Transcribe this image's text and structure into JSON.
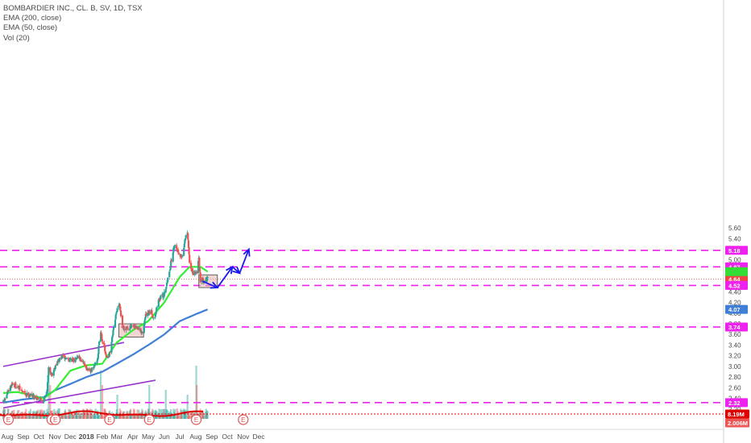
{
  "header": {
    "title": "BOMBARDIER INC., CL. B, SV, 1D, TSX",
    "indicators": [
      "EMA (200, close)",
      "EMA (50, close)",
      "Vol (20)"
    ]
  },
  "colors": {
    "up": "#26a69a",
    "down": "#ef5350",
    "ema50": "#33ee33",
    "ema200": "#3f7fd6",
    "support_resistance": "#ee22ee",
    "channel": "#9933cc",
    "arrow": "#1a1aee",
    "box_fill": "#e6b3ad",
    "vol_ma": "#dd0000",
    "last_price": "#ee4444",
    "ema200_label": "#3f7fd6",
    "ema50_label": "#33dd33"
  },
  "chart_data": {
    "type": "candlestick",
    "title": "BOMBARDIER INC., CL. B, SV, 1D, TSX",
    "xlabel": "",
    "ylabel": "",
    "ylim": [
      1.95,
      5.65
    ],
    "y_ticks": [
      2.0,
      2.2,
      2.4,
      2.6,
      2.8,
      3.0,
      3.2,
      3.4,
      3.6,
      3.8,
      4.0,
      4.2,
      4.4,
      4.6,
      4.8,
      5.0,
      5.2,
      5.4,
      5.6
    ],
    "x_ticks": [
      "Aug",
      "Sep",
      "Oct",
      "Nov",
      "Dec",
      "2018",
      "Feb",
      "Mar",
      "Apr",
      "May",
      "Jun",
      "Jul",
      "Aug",
      "Sep",
      "Oct",
      "Nov",
      "Dec"
    ],
    "x_tick_dates": [
      "2017-08-01",
      "2017-09-01",
      "2017-10-01",
      "2017-11-01",
      "2017-12-01",
      "2018-01-01",
      "2018-02-01",
      "2018-03-01",
      "2018-04-01",
      "2018-05-01",
      "2018-06-01",
      "2018-07-01",
      "2018-08-01",
      "2018-09-01",
      "2018-10-01",
      "2018-11-01",
      "2018-12-01"
    ],
    "start_date": "2017-07-24",
    "end_date": "2018-08-24",
    "price_anchors": [
      [
        "2017-07-24",
        2.32
      ],
      [
        "2017-08-04",
        2.55
      ],
      [
        "2017-08-10",
        2.68
      ],
      [
        "2017-08-20",
        2.62
      ],
      [
        "2017-09-05",
        2.48
      ],
      [
        "2017-09-20",
        2.45
      ],
      [
        "2017-10-10",
        2.35
      ],
      [
        "2017-10-17",
        2.55
      ],
      [
        "2017-10-20",
        2.95
      ],
      [
        "2017-10-27",
        2.85
      ],
      [
        "2017-11-03",
        3.05
      ],
      [
        "2017-11-15",
        3.18
      ],
      [
        "2017-12-08",
        3.1
      ],
      [
        "2017-12-15",
        3.22
      ],
      [
        "2017-12-27",
        3.05
      ],
      [
        "2018-01-08",
        2.88
      ],
      [
        "2018-01-16",
        3.0
      ],
      [
        "2018-01-23",
        3.15
      ],
      [
        "2018-01-28",
        3.7
      ],
      [
        "2018-02-02",
        3.45
      ],
      [
        "2018-02-09",
        3.15
      ],
      [
        "2018-02-16",
        3.25
      ],
      [
        "2018-02-22",
        3.65
      ],
      [
        "2018-03-01",
        4.05
      ],
      [
        "2018-03-06",
        4.15
      ],
      [
        "2018-03-13",
        3.72
      ],
      [
        "2018-04-01",
        3.74
      ],
      [
        "2018-04-10",
        3.72
      ],
      [
        "2018-04-19",
        3.62
      ],
      [
        "2018-04-26",
        3.95
      ],
      [
        "2018-05-07",
        4.02
      ],
      [
        "2018-05-12",
        3.88
      ],
      [
        "2018-05-21",
        4.25
      ],
      [
        "2018-05-31",
        4.35
      ],
      [
        "2018-06-06",
        4.55
      ],
      [
        "2018-06-14",
        4.95
      ],
      [
        "2018-06-21",
        5.3
      ],
      [
        "2018-06-28",
        5.15
      ],
      [
        "2018-07-05",
        5.05
      ],
      [
        "2018-07-12",
        5.4
      ],
      [
        "2018-07-16",
        5.5
      ],
      [
        "2018-07-20",
        4.95
      ],
      [
        "2018-07-27",
        4.72
      ],
      [
        "2018-08-03",
        4.78
      ],
      [
        "2018-08-07",
        5.05
      ],
      [
        "2018-08-10",
        4.62
      ],
      [
        "2018-08-17",
        4.62
      ],
      [
        "2018-08-24",
        4.64
      ]
    ],
    "ema50_anchors": [
      [
        "2017-07-24",
        2.5
      ],
      [
        "2017-08-20",
        2.52
      ],
      [
        "2017-09-20",
        2.45
      ],
      [
        "2017-10-10",
        2.4
      ],
      [
        "2017-11-01",
        2.55
      ],
      [
        "2017-12-01",
        2.92
      ],
      [
        "2018-01-01",
        3.02
      ],
      [
        "2018-02-01",
        3.05
      ],
      [
        "2018-03-01",
        3.45
      ],
      [
        "2018-04-01",
        3.68
      ],
      [
        "2018-05-01",
        3.85
      ],
      [
        "2018-06-01",
        4.2
      ],
      [
        "2018-07-01",
        4.68
      ],
      [
        "2018-07-20",
        4.87
      ],
      [
        "2018-08-10",
        4.87
      ],
      [
        "2018-08-24",
        4.78
      ]
    ],
    "ema200_anchors": [
      [
        "2017-07-24",
        2.32
      ],
      [
        "2017-09-01",
        2.38
      ],
      [
        "2017-10-10",
        2.42
      ],
      [
        "2017-11-01",
        2.55
      ],
      [
        "2017-12-01",
        2.67
      ],
      [
        "2018-01-01",
        2.8
      ],
      [
        "2018-02-01",
        2.9
      ],
      [
        "2018-03-01",
        3.05
      ],
      [
        "2018-04-01",
        3.22
      ],
      [
        "2018-05-01",
        3.4
      ],
      [
        "2018-06-01",
        3.6
      ],
      [
        "2018-07-01",
        3.85
      ],
      [
        "2018-08-01",
        3.98
      ],
      [
        "2018-08-24",
        4.07
      ]
    ],
    "horizontal_levels": [
      5.18,
      4.87,
      4.52,
      3.74,
      2.32
    ],
    "last_price_level": 4.64,
    "price_labels": [
      {
        "text": "5.18",
        "value": 5.18,
        "color": "#ee22ee"
      },
      {
        "text": "4.87",
        "value": 4.87,
        "color": "#ee22ee"
      },
      {
        "text": "4.64",
        "value": 4.64,
        "color": "#ee4444"
      },
      {
        "text": "4.52",
        "value": 4.52,
        "color": "#ee22ee"
      },
      {
        "text": "4.07",
        "value": 4.07,
        "color": "#3f7fd6"
      },
      {
        "text": "3.74",
        "value": 3.74,
        "color": "#ee22ee"
      },
      {
        "text": "2.32",
        "value": 2.32,
        "color": "#ee22ee"
      }
    ],
    "volume_labels": [
      "8.19M",
      "2.006M"
    ],
    "trendlines": [
      [
        [
          "2017-07-24",
          3.0
        ],
        [
          "2018-03-15",
          3.45
        ]
      ],
      [
        [
          "2017-07-24",
          2.22
        ],
        [
          "2018-05-15",
          2.74
        ]
      ]
    ],
    "boxes": [
      [
        [
          "2018-03-05",
          3.55
        ],
        [
          "2018-04-22",
          3.8
        ]
      ],
      [
        [
          "2018-08-07",
          4.48
        ],
        [
          "2018-09-12",
          4.72
        ]
      ]
    ],
    "projection_arrow": [
      [
        "2018-08-14",
        4.6
      ],
      [
        "2018-09-12",
        4.48
      ],
      [
        "2018-10-11",
        4.87
      ],
      [
        "2018-10-25",
        4.75
      ],
      [
        "2018-11-12",
        5.2
      ]
    ],
    "earnings_markers": [
      "2017-08-03",
      "2017-10-26",
      "2017-11-02",
      "2018-02-15",
      "2018-05-03",
      "2018-08-02",
      "2018-11-01"
    ],
    "earnings_label": "E",
    "volume_spikes": [
      [
        "2017-10-20",
        9
      ],
      [
        "2017-10-23",
        7
      ],
      [
        "2018-01-29",
        10
      ],
      [
        "2018-02-01",
        7
      ],
      [
        "2018-03-02",
        5
      ],
      [
        "2018-05-03",
        7
      ],
      [
        "2018-06-04",
        6
      ],
      [
        "2018-07-16",
        5
      ],
      [
        "2018-08-02",
        11
      ],
      [
        "2018-08-03",
        7
      ]
    ]
  }
}
